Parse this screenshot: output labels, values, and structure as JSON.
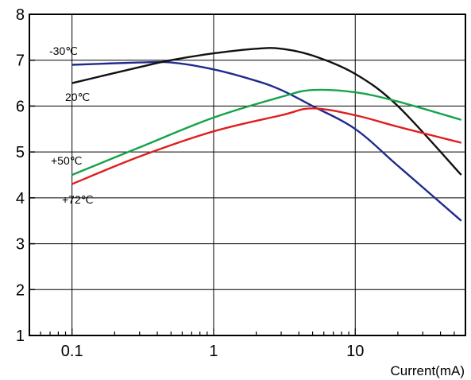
{
  "chart_data": {
    "type": "line",
    "title": "",
    "xlabel": "Current(mA)",
    "ylabel": "",
    "x_scale": "log",
    "xlim": [
      0.05,
      60
    ],
    "ylim": [
      1,
      8
    ],
    "grid": true,
    "x_ticks": [
      "0.1",
      "1",
      "10"
    ],
    "y_ticks": [
      "1",
      "2",
      "3",
      "4",
      "5",
      "6",
      "7",
      "8"
    ],
    "series": [
      {
        "name": "-30℃",
        "color": "#1f2a8c",
        "x": [
          0.1,
          0.3,
          0.5,
          1,
          2,
          3,
          5,
          10,
          20,
          56
        ],
        "y": [
          6.9,
          6.95,
          6.95,
          6.8,
          6.55,
          6.35,
          6.0,
          5.5,
          4.7,
          3.5
        ]
      },
      {
        "name": "20℃",
        "color": "#111111",
        "x": [
          0.1,
          0.3,
          0.5,
          1,
          2,
          3,
          5,
          10,
          20,
          56
        ],
        "y": [
          6.5,
          6.85,
          7.0,
          7.15,
          7.25,
          7.25,
          7.1,
          6.7,
          6.0,
          4.5
        ]
      },
      {
        "name": "+50℃",
        "color": "#16a34a",
        "x": [
          0.1,
          0.3,
          1,
          3,
          5,
          10,
          20,
          56
        ],
        "y": [
          4.5,
          5.1,
          5.75,
          6.2,
          6.35,
          6.3,
          6.1,
          5.7
        ]
      },
      {
        "name": "+72℃",
        "color": "#e11d1d",
        "x": [
          0.1,
          0.3,
          1,
          3,
          5,
          10,
          20,
          56
        ],
        "y": [
          4.3,
          4.9,
          5.45,
          5.8,
          5.95,
          5.8,
          5.55,
          5.2
        ]
      }
    ]
  }
}
